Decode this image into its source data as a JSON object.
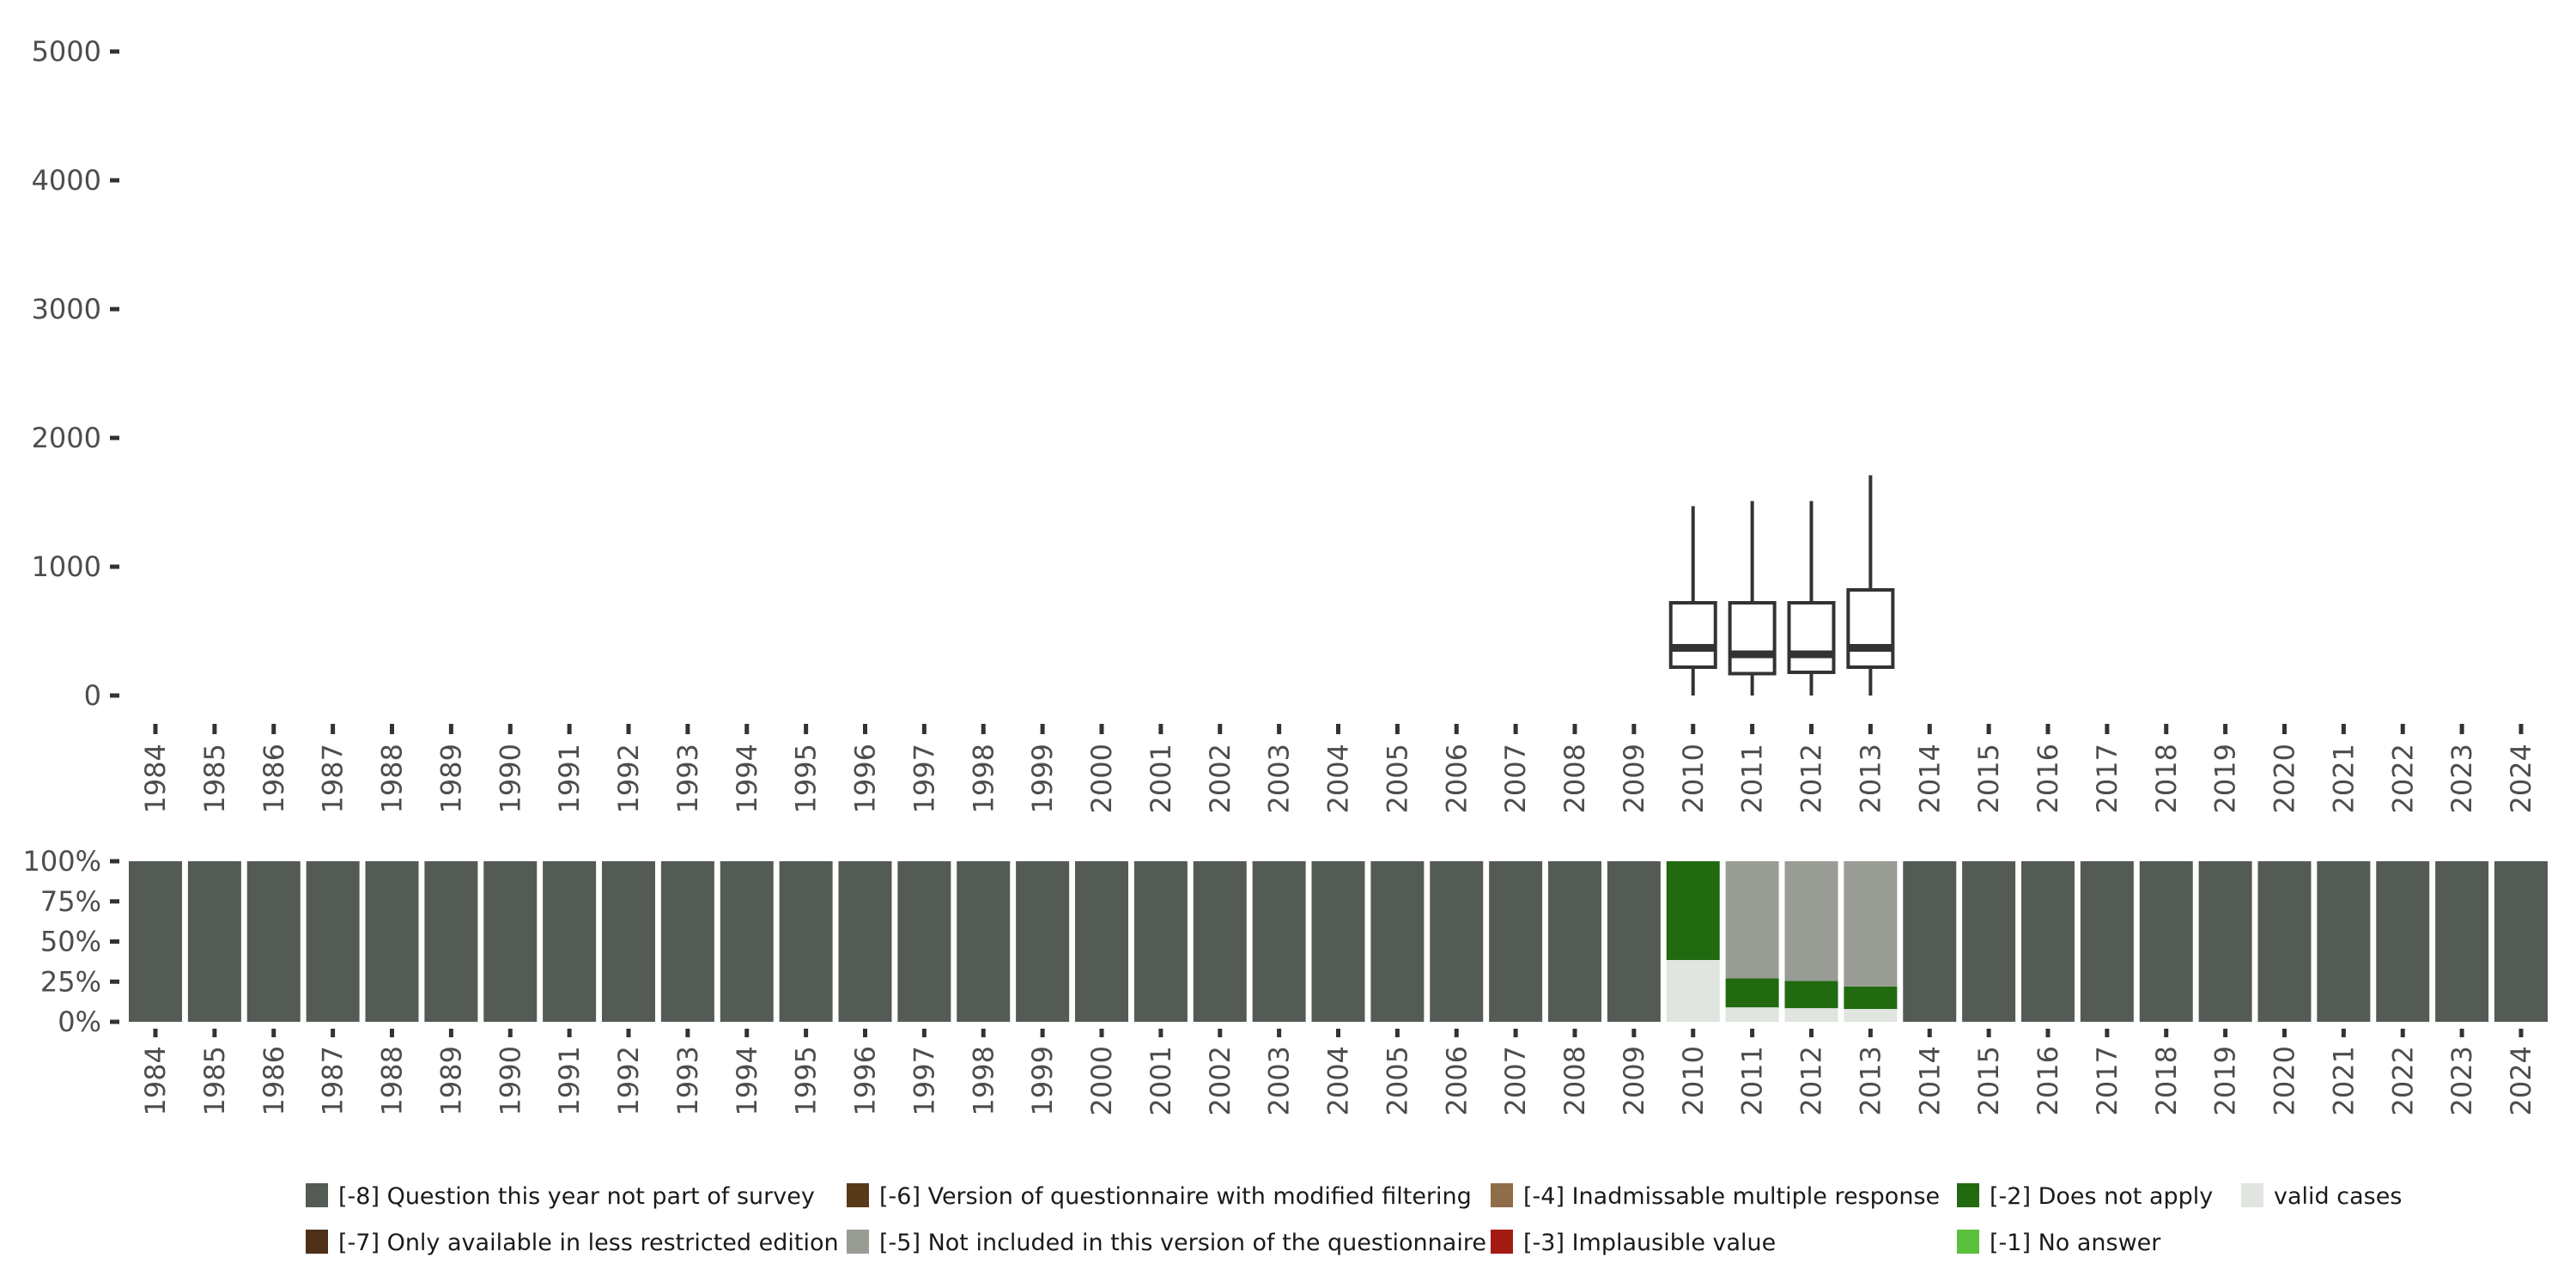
{
  "chart_data": [
    {
      "type": "boxplot",
      "title": "",
      "xlabel": "",
      "ylabel": "",
      "ylim": [
        0,
        5000
      ],
      "yticks": [
        "0",
        "1000",
        "2000",
        "3000",
        "4000",
        "5000"
      ],
      "ytick_values": [
        0,
        1000,
        2000,
        3000,
        4000,
        5000
      ],
      "categories": [
        "1984",
        "1985",
        "1986",
        "1987",
        "1988",
        "1989",
        "1990",
        "1991",
        "1992",
        "1993",
        "1994",
        "1995",
        "1996",
        "1997",
        "1998",
        "1999",
        "2000",
        "2001",
        "2002",
        "2003",
        "2004",
        "2005",
        "2006",
        "2007",
        "2008",
        "2009",
        "2010",
        "2011",
        "2012",
        "2013",
        "2014",
        "2015",
        "2016",
        "2017",
        "2018",
        "2019",
        "2020",
        "2021",
        "2022",
        "2023",
        "2024"
      ],
      "boxes": [
        {
          "year": "2010",
          "min": 0,
          "q1": 220,
          "median": 370,
          "q3": 720,
          "max": 1470
        },
        {
          "year": "2011",
          "min": 0,
          "q1": 170,
          "median": 320,
          "q3": 720,
          "max": 1510
        },
        {
          "year": "2012",
          "min": 0,
          "q1": 180,
          "median": 320,
          "q3": 720,
          "max": 1510
        },
        {
          "year": "2013",
          "min": 0,
          "q1": 220,
          "median": 370,
          "q3": 820,
          "max": 1710
        }
      ]
    },
    {
      "type": "bar",
      "stacked": true,
      "ylim": [
        0,
        1
      ],
      "yticks": [
        "0%",
        "25%",
        "50%",
        "75%",
        "100%"
      ],
      "ytick_values": [
        0,
        0.25,
        0.5,
        0.75,
        1
      ],
      "categories": [
        "1984",
        "1985",
        "1986",
        "1987",
        "1988",
        "1989",
        "1990",
        "1991",
        "1992",
        "1993",
        "1994",
        "1995",
        "1996",
        "1997",
        "1998",
        "1999",
        "2000",
        "2001",
        "2002",
        "2003",
        "2004",
        "2005",
        "2006",
        "2007",
        "2008",
        "2009",
        "2010",
        "2011",
        "2012",
        "2013",
        "2014",
        "2015",
        "2016",
        "2017",
        "2018",
        "2019",
        "2020",
        "2021",
        "2022",
        "2023",
        "2024"
      ],
      "default_stack": {
        "-8": 1.0
      },
      "stacks": {
        "2010": {
          "valid": 0.385,
          "-2": 0.615
        },
        "2011": {
          "valid": 0.09,
          "-2": 0.18,
          "-5": 0.73
        },
        "2012": {
          "valid": 0.085,
          "-2": 0.17,
          "-5": 0.745
        },
        "2013": {
          "valid": 0.08,
          "-2": 0.14,
          "-5": 0.78
        }
      },
      "stack_order": [
        "valid",
        "-1",
        "-2",
        "-3",
        "-4",
        "-5",
        "-6",
        "-7",
        "-8"
      ]
    }
  ],
  "legend": {
    "placement": "bottom",
    "items": [
      {
        "key": "-8",
        "label": "[-8] Question this year not part of survey",
        "color": "#545b55"
      },
      {
        "key": "-7",
        "label": "[-7] Only available in less restricted edition",
        "color": "#4e2f18"
      },
      {
        "key": "-6",
        "label": "[-6] Version of questionnaire with modified filtering",
        "color": "#583a1b"
      },
      {
        "key": "-5",
        "label": "[-5] Not included in this version of the questionnaire",
        "color": "#989c95"
      },
      {
        "key": "-4",
        "label": "[-4] Inadmissable multiple response",
        "color": "#8f6c4a"
      },
      {
        "key": "-3",
        "label": "[-3] Implausible value",
        "color": "#a31a12"
      },
      {
        "key": "-2",
        "label": "[-2] Does not apply",
        "color": "#216a10"
      },
      {
        "key": "-1",
        "label": "[-1] No answer",
        "color": "#5ac03e"
      },
      {
        "key": "valid",
        "label": "valid cases",
        "color": "#e0e5e0"
      }
    ]
  },
  "colors": {
    "axis": "#333333",
    "box_stroke": "#333333"
  }
}
